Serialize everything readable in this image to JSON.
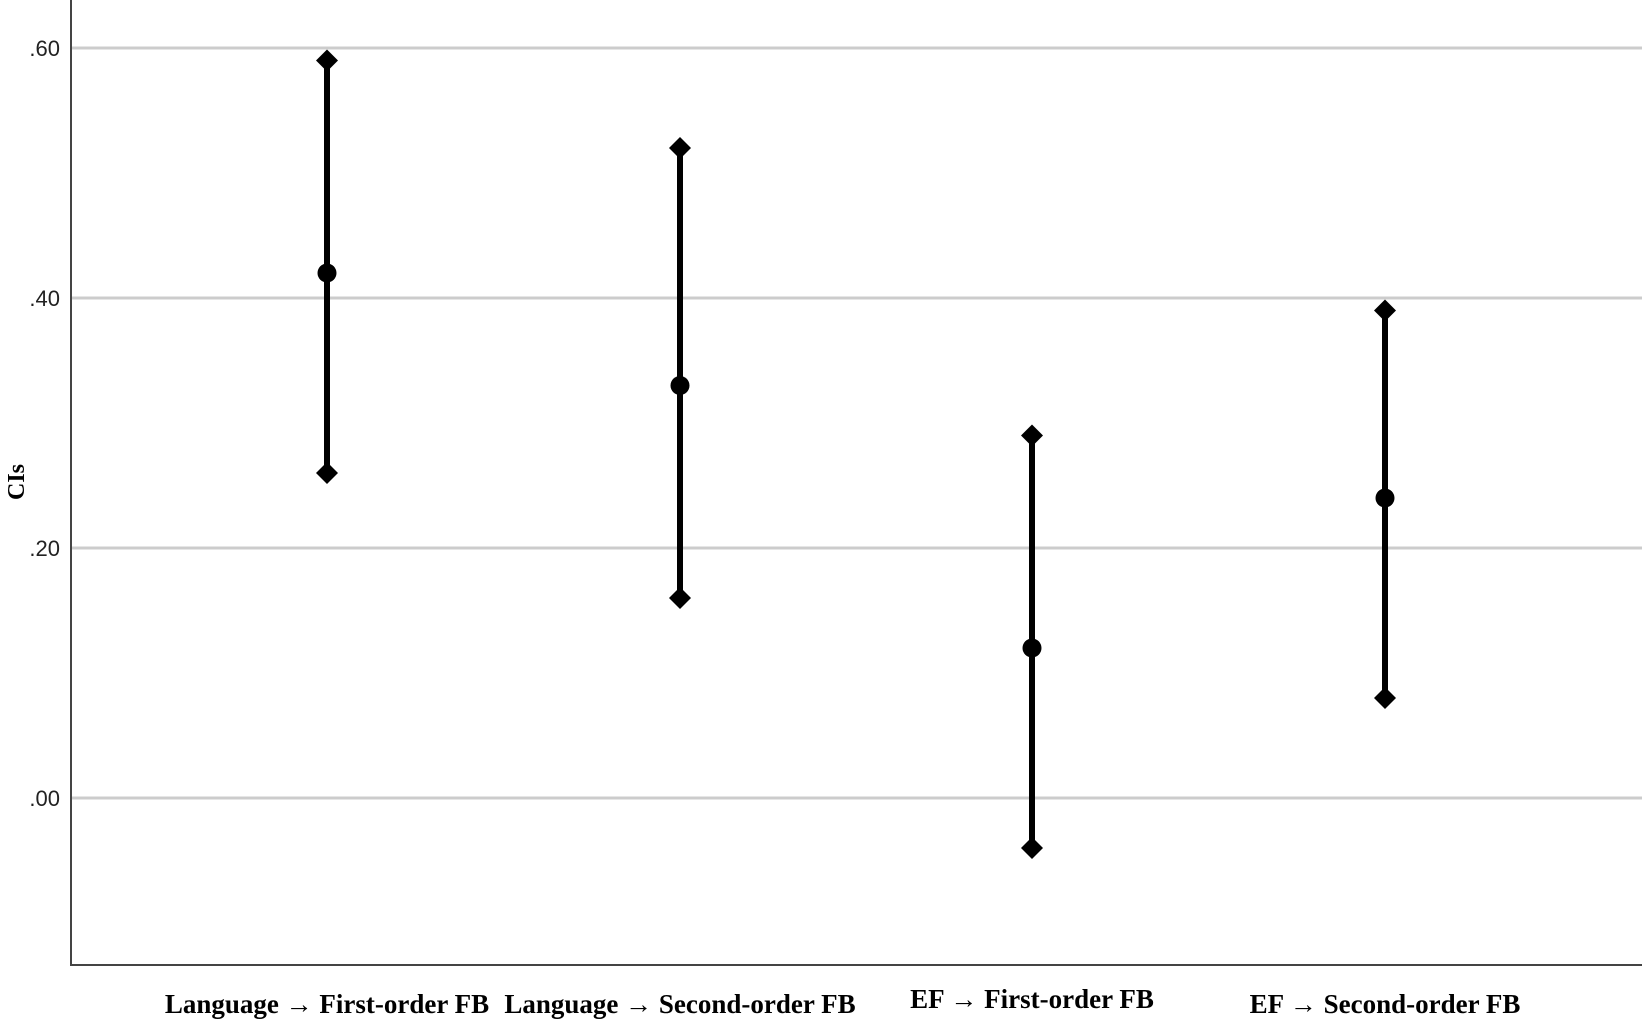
{
  "chart_data": {
    "type": "errorbar",
    "title": "",
    "xlabel": "",
    "ylabel": "CIs",
    "ylim": [
      -0.14,
      0.64
    ],
    "yticks": [
      0.0,
      0.2,
      0.4,
      0.6
    ],
    "ytick_labels": [
      ".00",
      ".20",
      ".40",
      ".60"
    ],
    "grid": true,
    "categories": [
      "Language → First-order FB",
      "Language → Second-order FB",
      "EF → First-order FB",
      "EF → Second-order FB"
    ],
    "series": [
      {
        "estimate": [
          0.42,
          0.33,
          0.12,
          0.24
        ],
        "lower": [
          0.26,
          0.16,
          -0.04,
          0.08
        ],
        "upper": [
          0.59,
          0.52,
          0.29,
          0.39
        ]
      }
    ],
    "colors": {
      "grid": "#cccccc",
      "marks": "#000000",
      "axis": "#444444"
    }
  }
}
